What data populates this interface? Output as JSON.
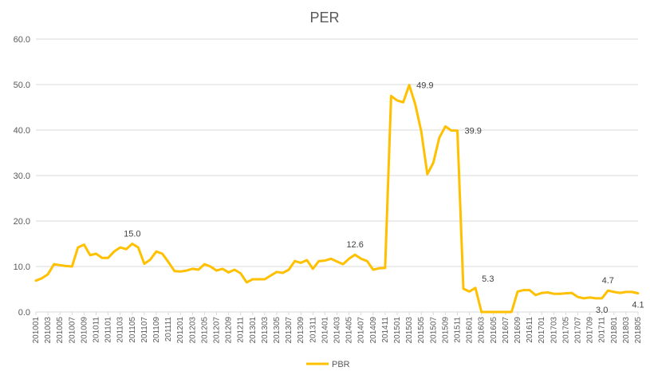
{
  "chart_data": {
    "type": "line",
    "title": "PER",
    "xlabel": "",
    "ylabel": "",
    "ylim": [
      0,
      60
    ],
    "y_ticks": [
      "0.0",
      "10.0",
      "20.0",
      "30.0",
      "40.0",
      "50.0",
      "60.0"
    ],
    "grid": "horizontal",
    "legend_position": "bottom",
    "line_color": "#FFC000",
    "x_tick_labels": [
      "201001",
      "201003",
      "201005",
      "201007",
      "201009",
      "201011",
      "201101",
      "201103",
      "201105",
      "201107",
      "201109",
      "201111",
      "201201",
      "201203",
      "201205",
      "201207",
      "201209",
      "201211",
      "201301",
      "201303",
      "201305",
      "201307",
      "201309",
      "201311",
      "201401",
      "201403",
      "201405",
      "201407",
      "201409",
      "201411",
      "201501",
      "201503",
      "201505",
      "201507",
      "201509",
      "201511",
      "201601",
      "201603",
      "201605",
      "201607",
      "201609",
      "201611",
      "201701",
      "201703",
      "201705",
      "201707",
      "201709",
      "201711",
      "201801",
      "201803",
      "201805"
    ],
    "series": [
      {
        "name": "PBR",
        "x": [
          "201001",
          "201002",
          "201003",
          "201004",
          "201005",
          "201006",
          "201007",
          "201008",
          "201009",
          "201010",
          "201011",
          "201012",
          "201101",
          "201102",
          "201103",
          "201104",
          "201105",
          "201106",
          "201107",
          "201108",
          "201109",
          "201110",
          "201111",
          "201112",
          "201201",
          "201202",
          "201203",
          "201204",
          "201205",
          "201206",
          "201207",
          "201208",
          "201209",
          "201210",
          "201211",
          "201212",
          "201301",
          "201302",
          "201303",
          "201304",
          "201305",
          "201306",
          "201307",
          "201308",
          "201309",
          "201310",
          "201311",
          "201312",
          "201401",
          "201402",
          "201403",
          "201404",
          "201405",
          "201406",
          "201407",
          "201408",
          "201409",
          "201410",
          "201411",
          "201412",
          "201501",
          "201502",
          "201503",
          "201504",
          "201505",
          "201506",
          "201507",
          "201508",
          "201509",
          "201510",
          "201511",
          "201512",
          "201601",
          "201602",
          "201603",
          "201604",
          "201605",
          "201606",
          "201607",
          "201608",
          "201609",
          "201610",
          "201611",
          "201612",
          "201701",
          "201702",
          "201703",
          "201704",
          "201705",
          "201706",
          "201707",
          "201708",
          "201709",
          "201710",
          "201711",
          "201712",
          "201801",
          "201802",
          "201803",
          "201804",
          "201805"
        ],
        "values": [
          6.9,
          7.4,
          8.3,
          10.5,
          10.3,
          10.1,
          10.0,
          14.2,
          14.8,
          12.5,
          12.8,
          11.9,
          11.9,
          13.3,
          14.2,
          13.8,
          15.0,
          14.2,
          10.6,
          11.5,
          13.3,
          12.8,
          11.0,
          9.0,
          8.9,
          9.1,
          9.5,
          9.3,
          10.5,
          10.0,
          9.1,
          9.5,
          8.7,
          9.3,
          8.5,
          6.5,
          7.2,
          7.2,
          7.2,
          8.0,
          8.8,
          8.6,
          9.3,
          11.2,
          10.8,
          11.4,
          9.5,
          11.2,
          11.3,
          11.7,
          11.1,
          10.5,
          11.7,
          12.6,
          11.7,
          11.2,
          9.3,
          9.6,
          9.7,
          47.5,
          46.5,
          46.1,
          49.9,
          45.7,
          39.7,
          30.3,
          32.8,
          38.3,
          40.8,
          39.9,
          39.9,
          5.1,
          4.5,
          5.3,
          0.0,
          0.0,
          0.0,
          0.0,
          0.0,
          0.0,
          4.5,
          4.8,
          4.8,
          3.7,
          4.2,
          4.3,
          4.0,
          4.0,
          4.1,
          4.2,
          3.3,
          3.0,
          3.2,
          3.0,
          3.0,
          4.7,
          4.4,
          4.2,
          4.4,
          4.4,
          4.1
        ]
      }
    ],
    "data_labels": [
      {
        "index": 16,
        "text": "15.0",
        "pos": "above"
      },
      {
        "index": 53,
        "text": "12.6",
        "pos": "above"
      },
      {
        "index": 62,
        "text": "49.9",
        "pos": "right"
      },
      {
        "index": 70,
        "text": "39.9",
        "pos": "right"
      },
      {
        "index": 73,
        "text": "5.3",
        "pos": "above-right"
      },
      {
        "index": 94,
        "text": "3.0",
        "pos": "below"
      },
      {
        "index": 95,
        "text": "4.7",
        "pos": "above"
      },
      {
        "index": 100,
        "text": "4.1",
        "pos": "below"
      }
    ]
  }
}
